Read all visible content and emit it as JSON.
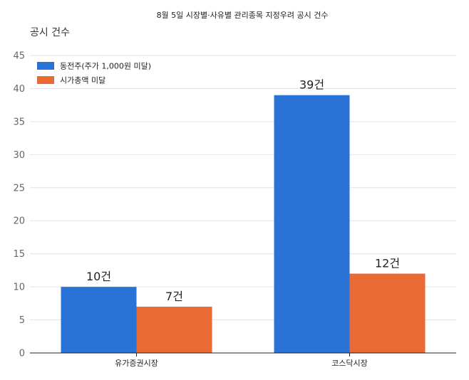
{
  "chart_data": {
    "type": "bar",
    "title": "8월 5일 시장별·사유별 관리종목 지정우려 공시 건수",
    "ylabel": "공시 건수",
    "xlabel": "",
    "categories": [
      "유가증권시장",
      "코스닥시장"
    ],
    "series": [
      {
        "name": "동전주(주가 1,000원 미달)",
        "values": [
          10,
          39
        ],
        "labels": [
          "10건",
          "39건"
        ],
        "color": "#2a73d6"
      },
      {
        "name": "시가총액 미달",
        "values": [
          7,
          12
        ],
        "labels": [
          "7건",
          "12건"
        ],
        "color": "#e96a35"
      }
    ],
    "ylim": [
      0,
      45
    ],
    "yticks": [
      "0",
      "5",
      "10",
      "15",
      "20",
      "25",
      "30",
      "35",
      "40",
      "45"
    ],
    "grid": true,
    "legend_position": "top-left"
  }
}
